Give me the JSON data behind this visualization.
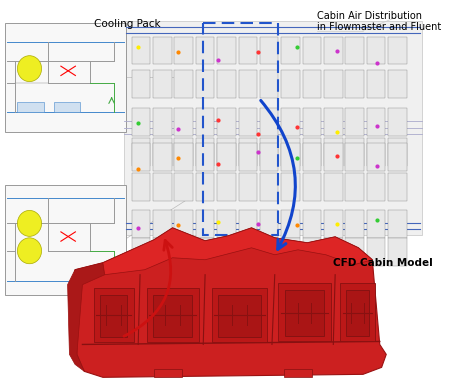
{
  "background_color": "#ffffff",
  "label_cooling_pack": "Cooling Pack",
  "label_cabin_air": "Cabin Air Distribution\nin Flowmaster and Fluent",
  "label_cfd": "CFD Cabin Model",
  "figsize": [
    4.6,
    3.83
  ],
  "dpi": 100,
  "arrow_blue_color": "#1144cc",
  "arrow_red_color": "#cc1111",
  "dashed_box_color": "#2255cc",
  "cabin_red": "#cc1111",
  "cabin_dark_red": "#881111",
  "cabin_shadow": "#992222"
}
